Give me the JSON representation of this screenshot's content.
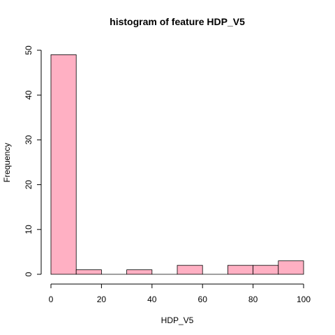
{
  "chart_data": {
    "type": "bar",
    "title": "histogram of feature HDP_V5",
    "xlabel": "HDP_V5",
    "ylabel": "Frequency",
    "bin_edges": [
      0,
      10,
      20,
      30,
      40,
      50,
      60,
      70,
      80,
      90,
      100
    ],
    "values": [
      49,
      1,
      0,
      1,
      0,
      2,
      0,
      2,
      2,
      3
    ],
    "xlim": [
      0,
      100
    ],
    "ylim": [
      0,
      50
    ],
    "x_ticks": [
      0,
      20,
      40,
      60,
      80,
      100
    ],
    "y_ticks": [
      0,
      10,
      20,
      30,
      40,
      50
    ],
    "bar_color": "#FFB0C3",
    "edge_color": "#000000",
    "grid": false
  }
}
